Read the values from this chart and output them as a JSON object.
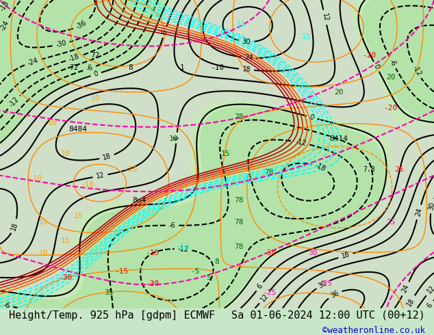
{
  "title_left": "Height/Temp. 925 hPa [gdpm] ECMWF",
  "title_right": "Sa 01-06-2024 12:00 UTC (00+12)",
  "credit": "©weatheronline.co.uk",
  "bg_color": "#c8e6c8",
  "border_color": "#000000",
  "title_fontsize": 11,
  "credit_fontsize": 9,
  "credit_color": "#0000cc",
  "title_color": "#000000",
  "fig_width": 6.34,
  "fig_height": 4.9,
  "dpi": 100,
  "map_bg": "#b8e0b8",
  "bottom_bar_color": "#f0f0f0",
  "bottom_bar_height": 0.08
}
